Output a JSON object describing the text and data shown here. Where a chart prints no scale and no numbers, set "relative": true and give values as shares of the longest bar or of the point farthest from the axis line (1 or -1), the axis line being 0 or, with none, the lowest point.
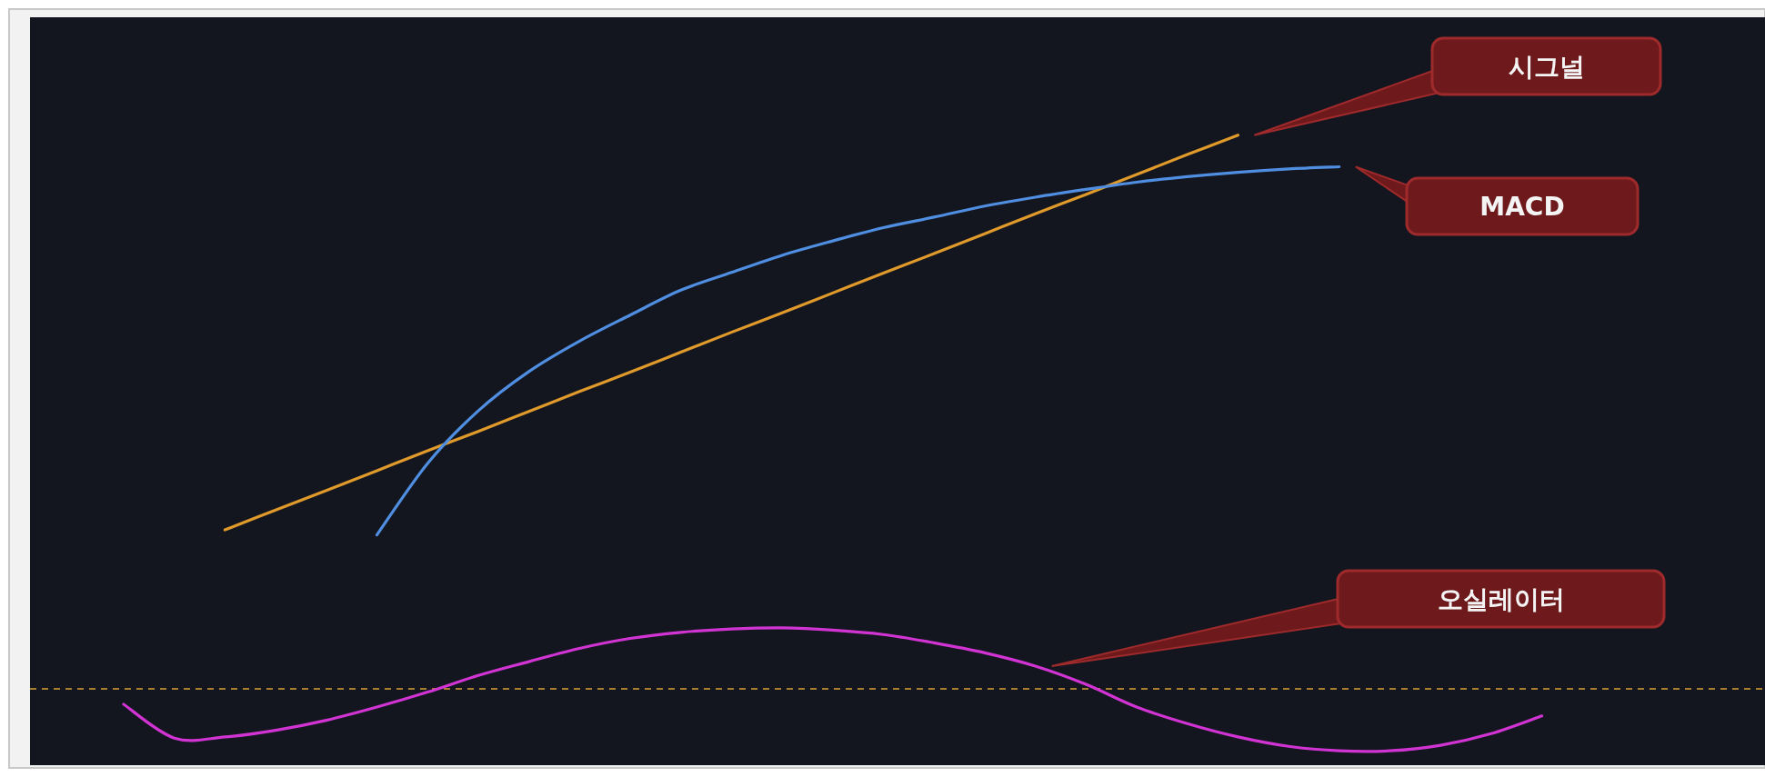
{
  "chart_data": {
    "type": "line",
    "relative": true,
    "categories": [
      null,
      null,
      null,
      null,
      null,
      null,
      null,
      null,
      null,
      null,
      null,
      null,
      null,
      null,
      null,
      null,
      null,
      null,
      null,
      null,
      null,
      null,
      null,
      null,
      null,
      null,
      null,
      null,
      null
    ],
    "series": [
      {
        "color": "#e09a2c",
        "values": [
          null,
          null,
          0.287,
          0.323,
          0.358,
          0.394,
          0.43,
          0.465,
          0.501,
          0.537,
          0.572,
          0.608,
          0.644,
          0.679,
          0.715,
          0.751,
          0.786,
          0.822,
          0.858,
          0.893,
          0.929,
          0.965,
          1.0,
          null,
          null,
          null,
          null,
          null,
          null
        ]
      },
      {
        "color": "#4f8ee0",
        "values": [
          null,
          null,
          null,
          null,
          null,
          0.278,
          0.407,
          0.502,
          0.573,
          0.628,
          0.675,
          0.72,
          0.752,
          0.783,
          0.809,
          0.833,
          0.852,
          0.872,
          0.888,
          0.902,
          0.915,
          0.925,
          0.933,
          0.939,
          0.943,
          null,
          null,
          null,
          null
        ]
      },
      {
        "color": "#d234d4",
        "values": [
          -0.028,
          -0.089,
          -0.087,
          -0.075,
          -0.057,
          -0.033,
          -0.006,
          0.024,
          0.049,
          0.073,
          0.091,
          0.102,
          0.108,
          0.11,
          0.106,
          0.098,
          0.083,
          0.065,
          0.041,
          0.008,
          -0.033,
          -0.063,
          -0.087,
          -0.104,
          -0.112,
          -0.112,
          -0.102,
          -0.081,
          -0.049
        ]
      }
    ],
    "annotations": [
      "시그널",
      "MACD",
      "오실레이터"
    ],
    "ref_lines": [
      {
        "axis": "y",
        "value": 0,
        "color": "#d9a336",
        "line_style": "dashed"
      }
    ],
    "grid": false,
    "legend": false,
    "marker": "none",
    "line_style": "solid"
  }
}
